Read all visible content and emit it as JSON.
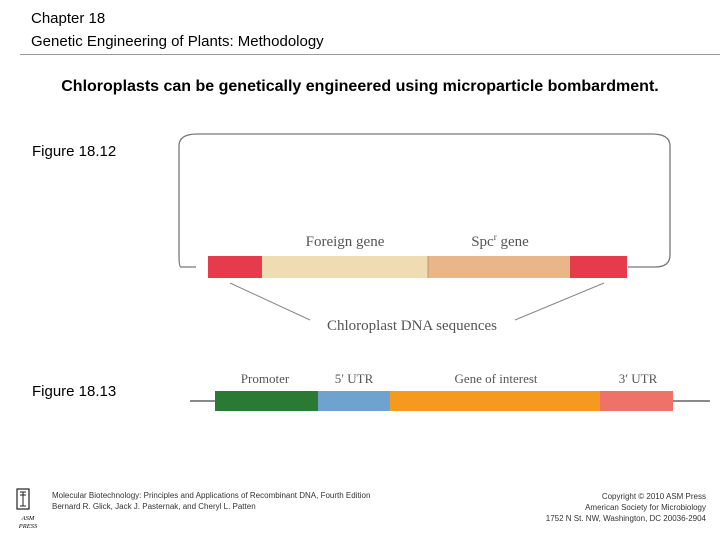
{
  "header": {
    "chapter": "Chapter 18",
    "subtitle": "Genetic Engineering of Plants: Methodology"
  },
  "headline": "Chloroplasts can be genetically engineered using microparticle bombardment.",
  "figure_18_12": {
    "label": "Figure 18.12",
    "foreign_gene": "Foreign gene",
    "spc_gene_prefix": "Spc",
    "spc_gene_sup": "r",
    "spc_gene_suffix": " gene",
    "chloroplast_dna": "Chloroplast DNA sequences",
    "colors": {
      "flank": "#e53b4d",
      "foreign": "#efdcb2",
      "spc": "#e9b68a",
      "outline": "#777777"
    }
  },
  "figure_18_13": {
    "label": "Figure 18.13",
    "promoter": "Promoter",
    "utr5": "5′ UTR",
    "gene_of_interest": "Gene of interest",
    "utr3": "3′ UTR",
    "colors": {
      "promoter": "#2a7a34",
      "utr5": "#6ea3cf",
      "gene": "#f59a1f",
      "utr3": "#ee7268"
    }
  },
  "footer": {
    "book_title": "Molecular Biotechnology: Principles and Applications of Recombinant DNA, Fourth Edition",
    "authors": "Bernard R. Glick, Jack J. Pasternak, and Cheryl L. Patten",
    "copyright": "Copyright © 2010 ASM Press",
    "society": "American Society for Microbiology",
    "address": "1752 N St. NW, Washington, DC 20036-2904",
    "logo_text_1": "ASM",
    "logo_text_2": "PRESS"
  }
}
